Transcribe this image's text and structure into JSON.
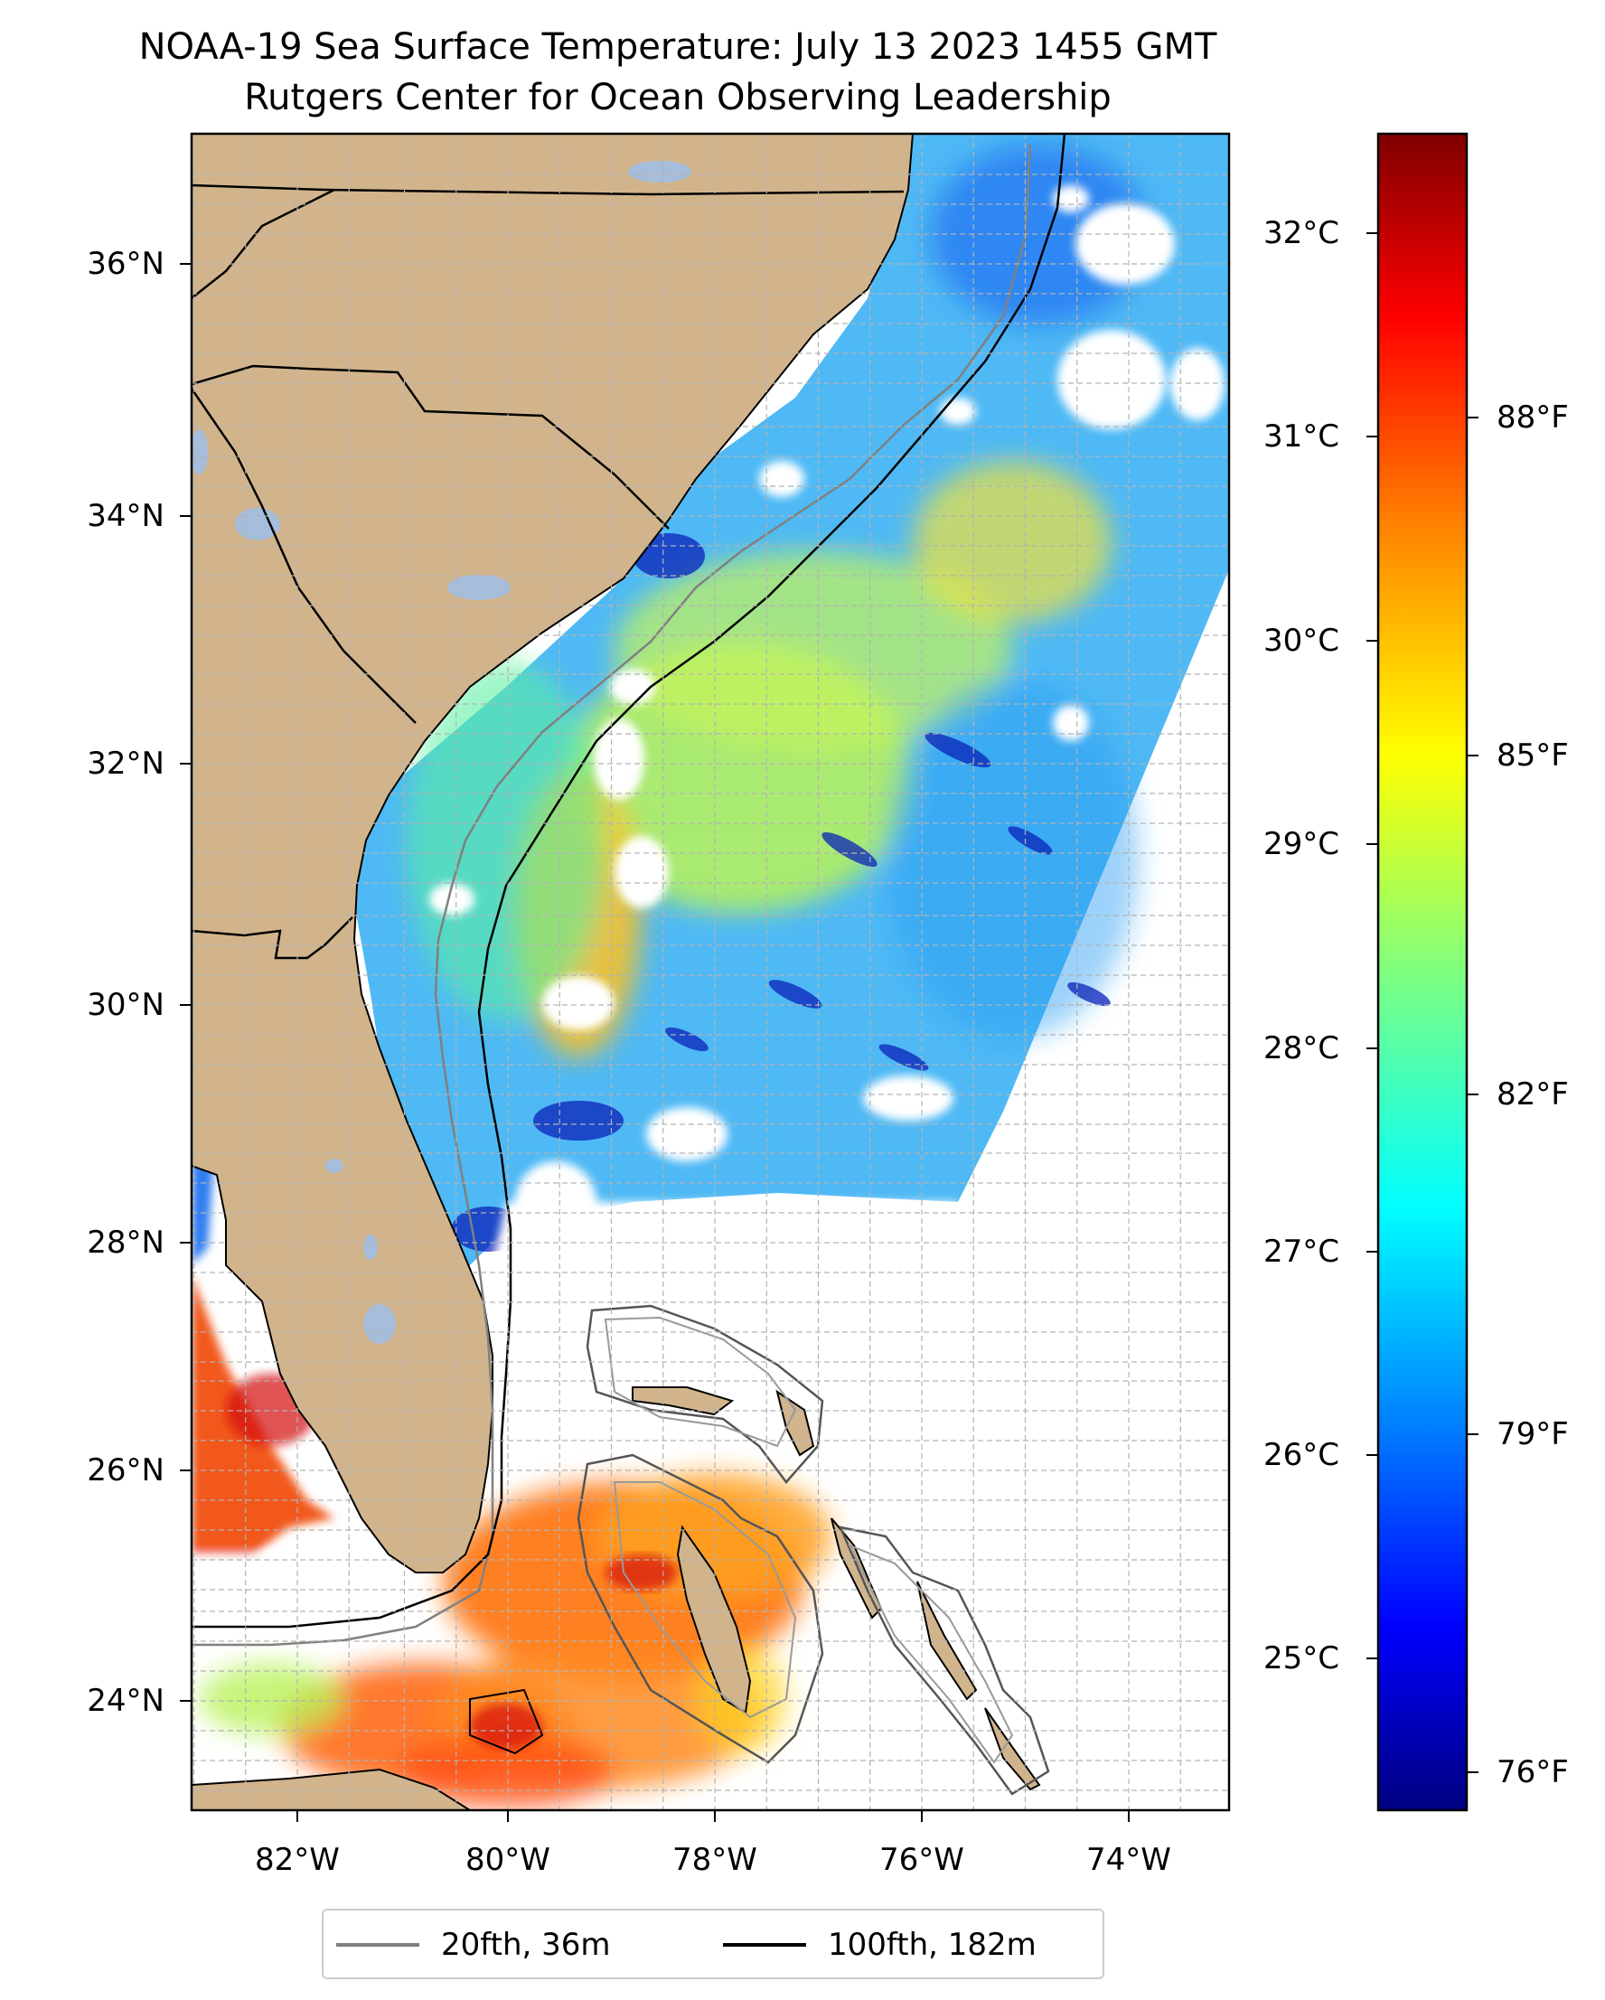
{
  "title": {
    "line1": "NOAA-19 Sea Surface Temperature: July 13 2023 1455 GMT",
    "line2": "Rutgers Center for Ocean Observing Leadership"
  },
  "map": {
    "lat_ticks": [
      "36°N",
      "34°N",
      "32°N",
      "30°N",
      "28°N",
      "26°N",
      "24°N"
    ],
    "lon_ticks": [
      "82°W",
      "80°W",
      "78°W",
      "76°W",
      "74°W"
    ],
    "land_color": "#d2b48c",
    "lake_color": "#a6bddb",
    "cloud_mask_color": "#ffffff",
    "gridlines": "dashed"
  },
  "colorbar": {
    "colormap": "jet",
    "range_c": [
      24.35,
      32.6
    ],
    "celsius_ticks": [
      "32°C",
      "31°C",
      "30°C",
      "29°C",
      "28°C",
      "27°C",
      "26°C",
      "25°C"
    ],
    "fahrenheit_ticks": [
      "88°F",
      "85°F",
      "82°F",
      "79°F",
      "76°F"
    ],
    "stops": [
      "#00007f",
      "#0000ff",
      "#007fff",
      "#00ffff",
      "#7fff7f",
      "#ffff00",
      "#ff7f00",
      "#ff0000",
      "#7f0000"
    ]
  },
  "legend": {
    "items": [
      {
        "label": "20fth, 36m",
        "color": "#808080"
      },
      {
        "label": "100fth, 182m",
        "color": "#000000"
      }
    ]
  }
}
